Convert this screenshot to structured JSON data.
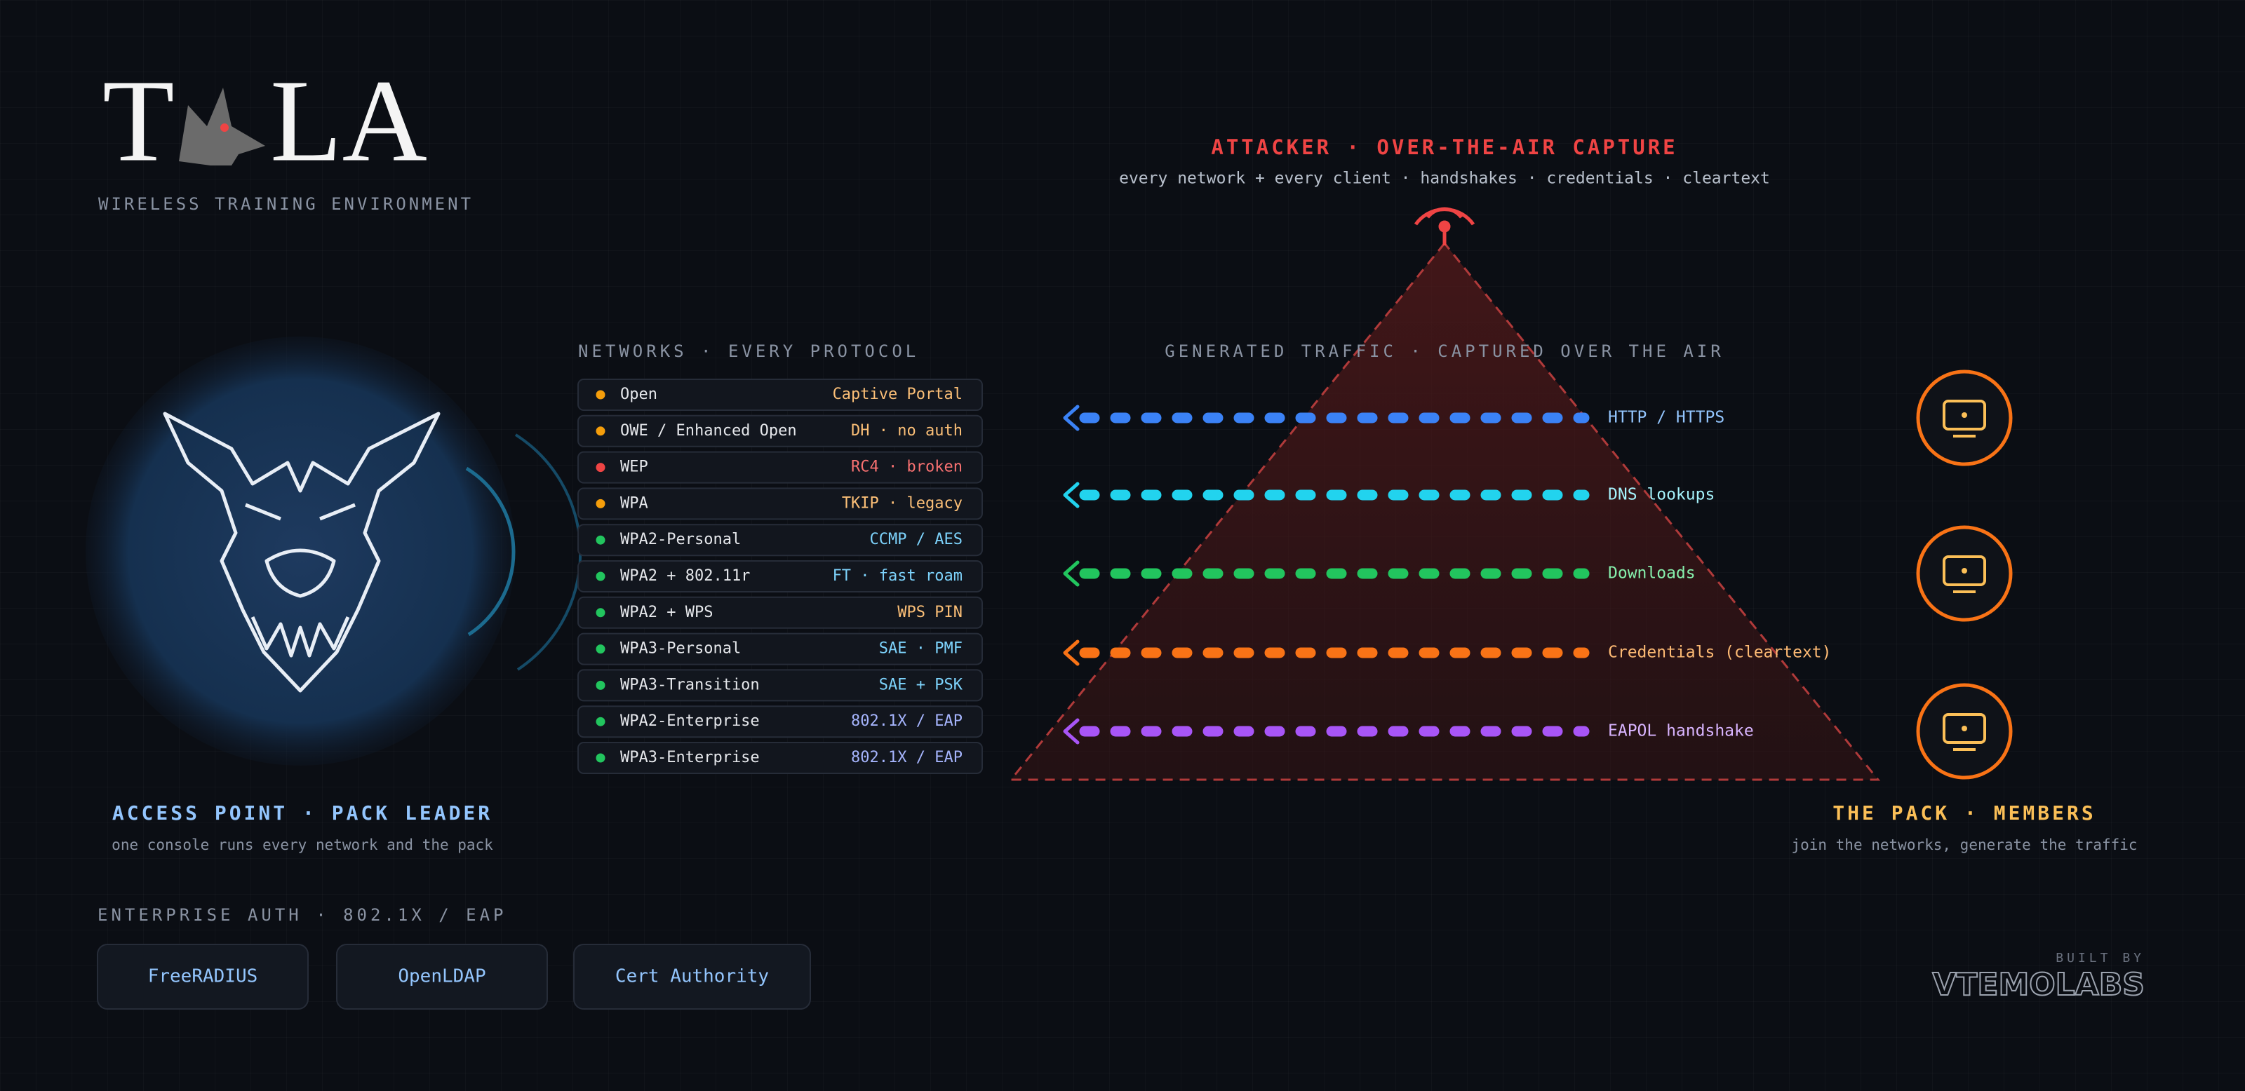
{
  "logo": {
    "left": "T",
    "right": "LA",
    "subtitle": "WIRELESS TRAINING ENVIRONMENT"
  },
  "access_point": {
    "title": "ACCESS POINT · PACK LEADER",
    "subtitle": "one console runs every network and the pack"
  },
  "networks": {
    "title": "NETWORKS · EVERY PROTOCOL",
    "rows": [
      {
        "name": "Open",
        "detail": "Captive Portal",
        "dot": "#f59e0b",
        "color": "#fbbf77"
      },
      {
        "name": "OWE / Enhanced Open",
        "detail": "DH · no auth",
        "dot": "#f59e0b",
        "color": "#fbbf77"
      },
      {
        "name": "WEP",
        "detail": "RC4 · broken",
        "dot": "#ef4444",
        "color": "#f87171"
      },
      {
        "name": "WPA",
        "detail": "TKIP · legacy",
        "dot": "#f59e0b",
        "color": "#fbbf77"
      },
      {
        "name": "WPA2-Personal",
        "detail": "CCMP / AES",
        "dot": "#22c55e",
        "color": "#7dd3fc"
      },
      {
        "name": "WPA2 + 802.11r",
        "detail": "FT · fast roam",
        "dot": "#22c55e",
        "color": "#7dd3fc"
      },
      {
        "name": "WPA2 + WPS",
        "detail": "WPS PIN",
        "dot": "#22c55e",
        "color": "#fbbf77"
      },
      {
        "name": "WPA3-Personal",
        "detail": "SAE · PMF",
        "dot": "#22c55e",
        "color": "#7dd3fc"
      },
      {
        "name": "WPA3-Transition",
        "detail": "SAE + PSK",
        "dot": "#22c55e",
        "color": "#7dd3fc"
      },
      {
        "name": "WPA2-Enterprise",
        "detail": "802.1X / EAP",
        "dot": "#22c55e",
        "color": "#a5b4fc"
      },
      {
        "name": "WPA3-Enterprise",
        "detail": "802.1X / EAP",
        "dot": "#22c55e",
        "color": "#a5b4fc"
      }
    ]
  },
  "attacker": {
    "title": "ATTACKER · OVER-THE-AIR CAPTURE",
    "subtitle": "every network + every client · handshakes · credentials · cleartext"
  },
  "traffic": {
    "title": "GENERATED TRAFFIC · CAPTURED OVER THE AIR",
    "flows": [
      {
        "label": "HTTP / HTTPS",
        "color": "#3b82f6",
        "label_color": "#93c5fd"
      },
      {
        "label": "DNS lookups",
        "color": "#22d3ee",
        "label_color": "#a5f3fc"
      },
      {
        "label": "Downloads",
        "color": "#22c55e",
        "label_color": "#86efac"
      },
      {
        "label": "Credentials (cleartext)",
        "color": "#f97316",
        "label_color": "#fdba74"
      },
      {
        "label": "EAPOL handshake",
        "color": "#a855f7",
        "label_color": "#d8b4fe"
      }
    ]
  },
  "pack": {
    "title": "THE PACK · MEMBERS",
    "subtitle": "join the networks, generate the traffic"
  },
  "enterprise": {
    "title": "ENTERPRISE AUTH · 802.1X / EAP",
    "services": [
      "FreeRADIUS",
      "OpenLDAP",
      "Cert Authority"
    ]
  },
  "footer": {
    "built_by": "BUILT BY",
    "brand": "VTEMOLABS"
  }
}
